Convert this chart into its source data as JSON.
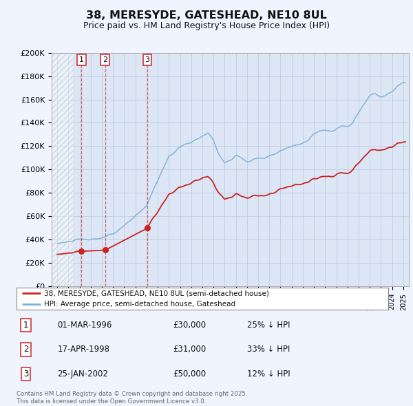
{
  "title": "38, MERESYDE, GATESHEAD, NE10 8UL",
  "subtitle": "Price paid vs. HM Land Registry's House Price Index (HPI)",
  "transactions": [
    {
      "label": "1",
      "date": "01-MAR-1996",
      "year": 1996.17,
      "price": 30000,
      "pct": "25% ↓ HPI"
    },
    {
      "label": "2",
      "date": "17-APR-1998",
      "year": 1998.29,
      "price": 31000,
      "pct": "33% ↓ HPI"
    },
    {
      "label": "3",
      "date": "25-JAN-2002",
      "year": 2002.07,
      "price": 50000,
      "pct": "12% ↓ HPI"
    }
  ],
  "legend_red": "38, MERESYDE, GATESHEAD, NE10 8UL (semi-detached house)",
  "legend_blue": "HPI: Average price, semi-detached house, Gateshead",
  "footnote": "Contains HM Land Registry data © Crown copyright and database right 2025.\nThis data is licensed under the Open Government Licence v3.0.",
  "ylim": [
    0,
    200000
  ],
  "yticks": [
    0,
    20000,
    40000,
    60000,
    80000,
    100000,
    120000,
    140000,
    160000,
    180000,
    200000
  ],
  "ytick_labels": [
    "£0",
    "£20K",
    "£40K",
    "£60K",
    "£80K",
    "£100K",
    "£120K",
    "£140K",
    "£160K",
    "£180K",
    "£200K"
  ],
  "xmin": 1993.5,
  "xmax": 2025.5,
  "hatch_end": 1995.5,
  "fig_bg": "#f0f4ff",
  "plot_bg": "#dce6f5",
  "red_color": "#cc2222",
  "blue_color": "#7ab0d4",
  "grid_color": "#b8c8dc"
}
